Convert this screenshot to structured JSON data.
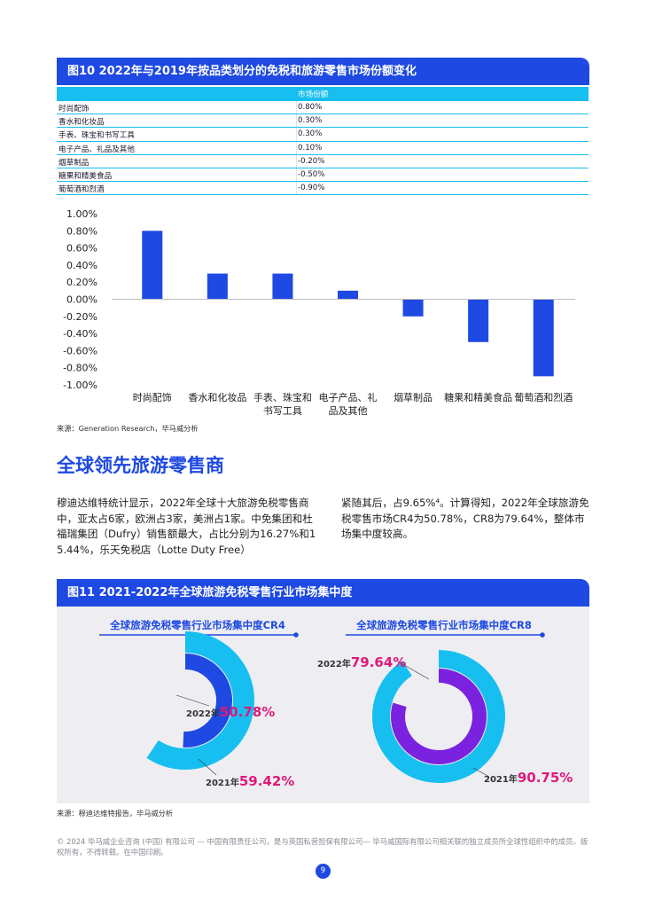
{
  "fig10": {
    "title": "图10 2022年与2019年按品类划分的免税和旅游零售市场份额变化",
    "table_header": "市场份额",
    "rows": [
      {
        "label": "时尚配饰",
        "value": "0.80%"
      },
      {
        "label": "香水和化妆品",
        "value": "0.30%"
      },
      {
        "label": "手表、珠宝和书写工具",
        "value": "0.30%"
      },
      {
        "label": "电子产品、礼品及其他",
        "value": "0.10%"
      },
      {
        "label": "烟草制品",
        "value": "-0.20%"
      },
      {
        "label": "糖果和精美食品",
        "value": "-0.50%"
      },
      {
        "label": "葡萄酒和烈酒",
        "value": "-0.90%"
      }
    ],
    "source": "来源：Generation Research，毕马威分析"
  },
  "chart_data": [
    {
      "type": "bar",
      "categories": [
        "时尚配饰",
        "香水和化妆品",
        "手表、珠宝和书写工具",
        "电子产品、礼品及其他",
        "烟草制品",
        "糖果和精美食品",
        "葡萄酒和烈酒"
      ],
      "category_lines": [
        [
          "时尚配饰"
        ],
        [
          "香水和化妆品"
        ],
        [
          "手表、珠宝和",
          "书写工具"
        ],
        [
          "电子产品、礼",
          "品及其他"
        ],
        [
          "烟草制品"
        ],
        [
          "糖果和精美食品"
        ],
        [
          "葡萄酒和烈酒"
        ]
      ],
      "values": [
        0.8,
        0.3,
        0.3,
        0.1,
        -0.2,
        -0.5,
        -0.9
      ],
      "ylim": [
        -1.0,
        1.0
      ],
      "yticks": [
        "1.00%",
        "0.80%",
        "0.60%",
        "0.40%",
        "0.20%",
        "0.00%",
        "-0.20%",
        "-0.40%",
        "-0.60%",
        "-0.80%",
        "-1.00%"
      ],
      "color": "#1e49e2",
      "grid": false
    },
    {
      "type": "pie",
      "title": "全球旅游免税零售行业市场集中度CR4",
      "series": [
        {
          "name": "2022年",
          "value": 50.78,
          "label": "50.78%"
        },
        {
          "name": "2021年",
          "value": 59.42,
          "label": "59.42%"
        }
      ]
    },
    {
      "type": "pie",
      "title": "全球旅游免税零售行业市场集中度CR8",
      "series": [
        {
          "name": "2022年",
          "value": 79.64,
          "label": "79.64%"
        },
        {
          "name": "2021年",
          "value": 90.75,
          "label": "90.75%"
        }
      ]
    }
  ],
  "section": {
    "title": "全球领先旅游零售商",
    "para_left": "穆迪达维特统计显示，2022年全球十大旅游免税零售商中，亚太占6家，欧洲占3家，美洲占1家。中免集团和杜福瑞集团（Dufry）销售额最大，占比分别为16.27%和15.44%，乐天免税店（Lotte Duty Free）",
    "para_right": "紧随其后，占9.65%⁴。计算得知，2022年全球旅游免税零售市场CR4为50.78%，CR8为79.64%，整体市场集中度较高。"
  },
  "fig11": {
    "title": "图11 2021-2022年全球旅游免税零售行业市场集中度",
    "source": "来源：穆迪达维特报告，毕马威分析"
  },
  "colors": {
    "brand_blue": "#1e49e2",
    "cyan": "#16bff0",
    "purple": "#7b22e0",
    "pink": "#e0197a"
  },
  "footer": {
    "text": "© 2024 毕马威企业咨询 (中国) 有限公司 — 中国有限责任公司，是与英国私营担保有限公司— 毕马威国际有限公司相关联的独立成员所全球性组织中的成员。版权所有，不得转载。在中国印刷。",
    "page": "9"
  }
}
